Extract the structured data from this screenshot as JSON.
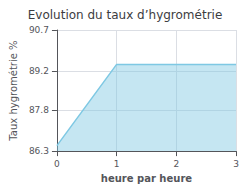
{
  "chart_data": {
    "type": "area",
    "title": "Evolution du taux d’hygrométrie",
    "xlabel": "heure par heure",
    "ylabel": "Taux hygrométrie %",
    "x": [
      0,
      1,
      3
    ],
    "values": [
      86.5,
      89.45,
      89.45
    ],
    "color": "#7ec8e3",
    "xlim": [
      0,
      3
    ],
    "ylim": [
      86.3,
      90.7
    ],
    "xticks": [
      0,
      1,
      2,
      3
    ],
    "yticks": [
      86.3,
      87.8,
      89.2,
      90.7
    ],
    "grid": true
  }
}
